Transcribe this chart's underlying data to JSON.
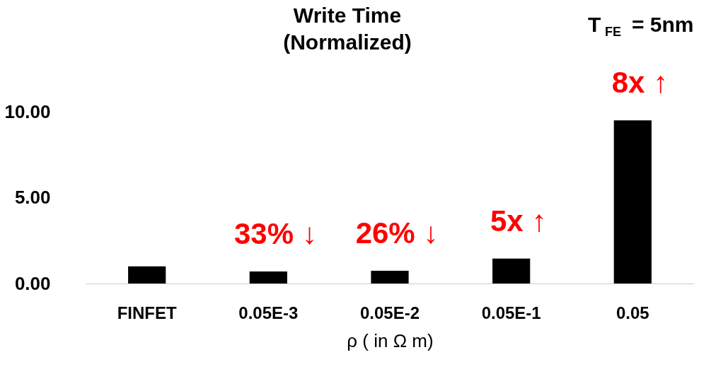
{
  "chart_data": {
    "type": "bar",
    "title": [
      "Write Time",
      "(Normalized)"
    ],
    "xlabel": "ρ ( in Ω m)",
    "categories": [
      "FINFET",
      "0.05E-3",
      "0.05E-2",
      "0.05E-1",
      "0.05"
    ],
    "values": [
      1.0,
      0.7,
      0.74,
      1.45,
      9.5
    ],
    "color": "#000000",
    "ylim": [
      0,
      10
    ],
    "yticks": [
      {
        "value": 0,
        "label": "0.00"
      },
      {
        "value": 5,
        "label": "5.00"
      },
      {
        "value": 10,
        "label": "10.00"
      }
    ],
    "grid": false,
    "annotations": [
      "33% ↓",
      "26% ↓",
      "5x ↑",
      "8x ↑",
      "T$_{FE}$ = 5nm"
    ]
  }
}
